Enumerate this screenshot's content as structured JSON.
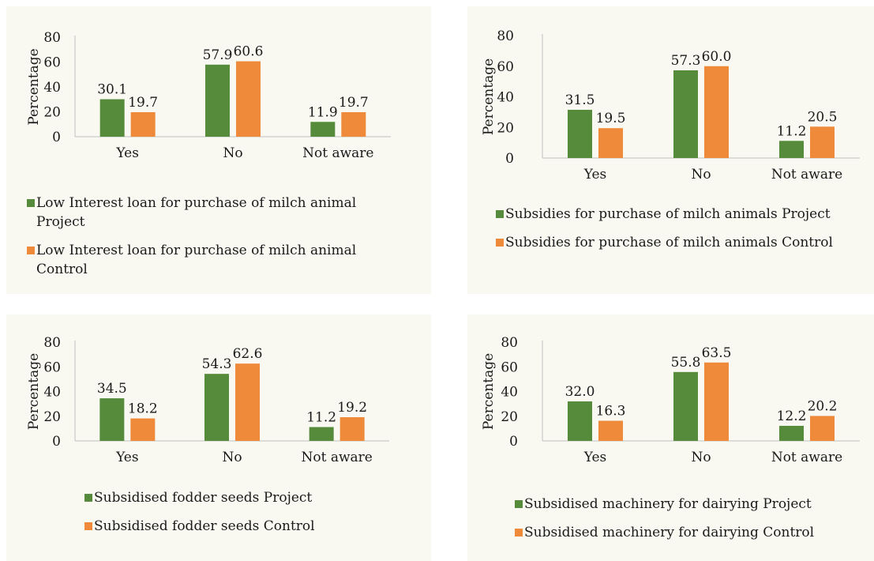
{
  "colors": {
    "project": "#568b3c",
    "control": "#ee8a3a",
    "panel_bg": "#f9f9f2",
    "axis": "#bfbfbf"
  },
  "chart_data": [
    {
      "type": "bar",
      "categories": [
        "Yes",
        "No",
        "Not aware"
      ],
      "ylabel": "Percentage",
      "ylim": [
        0,
        80
      ],
      "yticks": [
        0,
        20,
        40,
        60,
        80
      ],
      "legend_position": "bottom",
      "series": [
        {
          "name": "Low Interest loan for purchase of milch animal Project",
          "values": [
            30.1,
            57.9,
            11.9
          ]
        },
        {
          "name": "Low Interest loan for purchase of milch animal Control",
          "values": [
            19.7,
            60.6,
            19.7
          ]
        }
      ]
    },
    {
      "type": "bar",
      "categories": [
        "Yes",
        "No",
        "Not aware"
      ],
      "ylabel": "Percentage",
      "ylim": [
        0,
        80
      ],
      "yticks": [
        0,
        20,
        40,
        60,
        80
      ],
      "legend_position": "bottom",
      "series": [
        {
          "name": "Subsidies for purchase of milch animals Project",
          "values": [
            31.5,
            57.3,
            11.2
          ]
        },
        {
          "name": "Subsidies for purchase of milch animals Control",
          "values": [
            19.5,
            60.0,
            20.5
          ]
        }
      ]
    },
    {
      "type": "bar",
      "categories": [
        "Yes",
        "No",
        "Not aware"
      ],
      "ylabel": "Percentage",
      "ylim": [
        0,
        80
      ],
      "yticks": [
        0,
        20,
        40,
        60,
        80
      ],
      "legend_position": "bottom",
      "series": [
        {
          "name": "Subsidised fodder seeds Project",
          "values": [
            34.5,
            54.3,
            11.2
          ]
        },
        {
          "name": "Subsidised fodder seeds Control",
          "values": [
            18.2,
            62.6,
            19.2
          ]
        }
      ]
    },
    {
      "type": "bar",
      "categories": [
        "Yes",
        "No",
        "Not aware"
      ],
      "ylabel": "Percentage",
      "ylim": [
        0,
        80
      ],
      "yticks": [
        0,
        20,
        40,
        60,
        80
      ],
      "legend_position": "bottom",
      "series": [
        {
          "name": "Subsidised machinery for dairying Project",
          "values": [
            32.0,
            55.8,
            12.2
          ]
        },
        {
          "name": "Subsidised machinery for dairying Control",
          "values": [
            16.3,
            63.5,
            20.2
          ]
        }
      ]
    }
  ]
}
